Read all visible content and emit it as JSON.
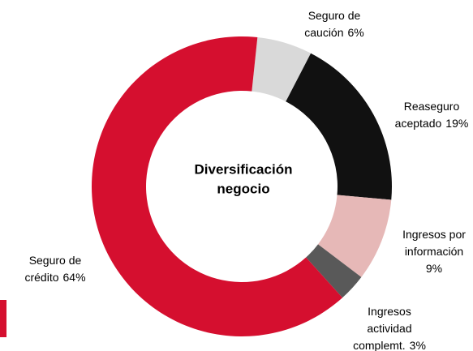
{
  "chart_data": {
    "type": "donut",
    "center_text": [
      "Diversificación",
      "negocio"
    ],
    "categories": [
      [
        "Seguro de",
        "caución"
      ],
      [
        "Reaseguro",
        "aceptado"
      ],
      [
        "Ingresos por",
        "información"
      ],
      [
        "Ingresos",
        "actividad",
        "complemt."
      ],
      [
        "Seguro de",
        "crédito"
      ]
    ],
    "values": [
      6,
      19,
      9,
      3,
      64
    ],
    "value_labels": [
      "6%",
      "19%",
      "9%",
      "3%",
      "64%"
    ],
    "colors": [
      "#d9d9d9",
      "#111111",
      "#e6b8b7",
      "#595959",
      "#d50f2f"
    ]
  }
}
